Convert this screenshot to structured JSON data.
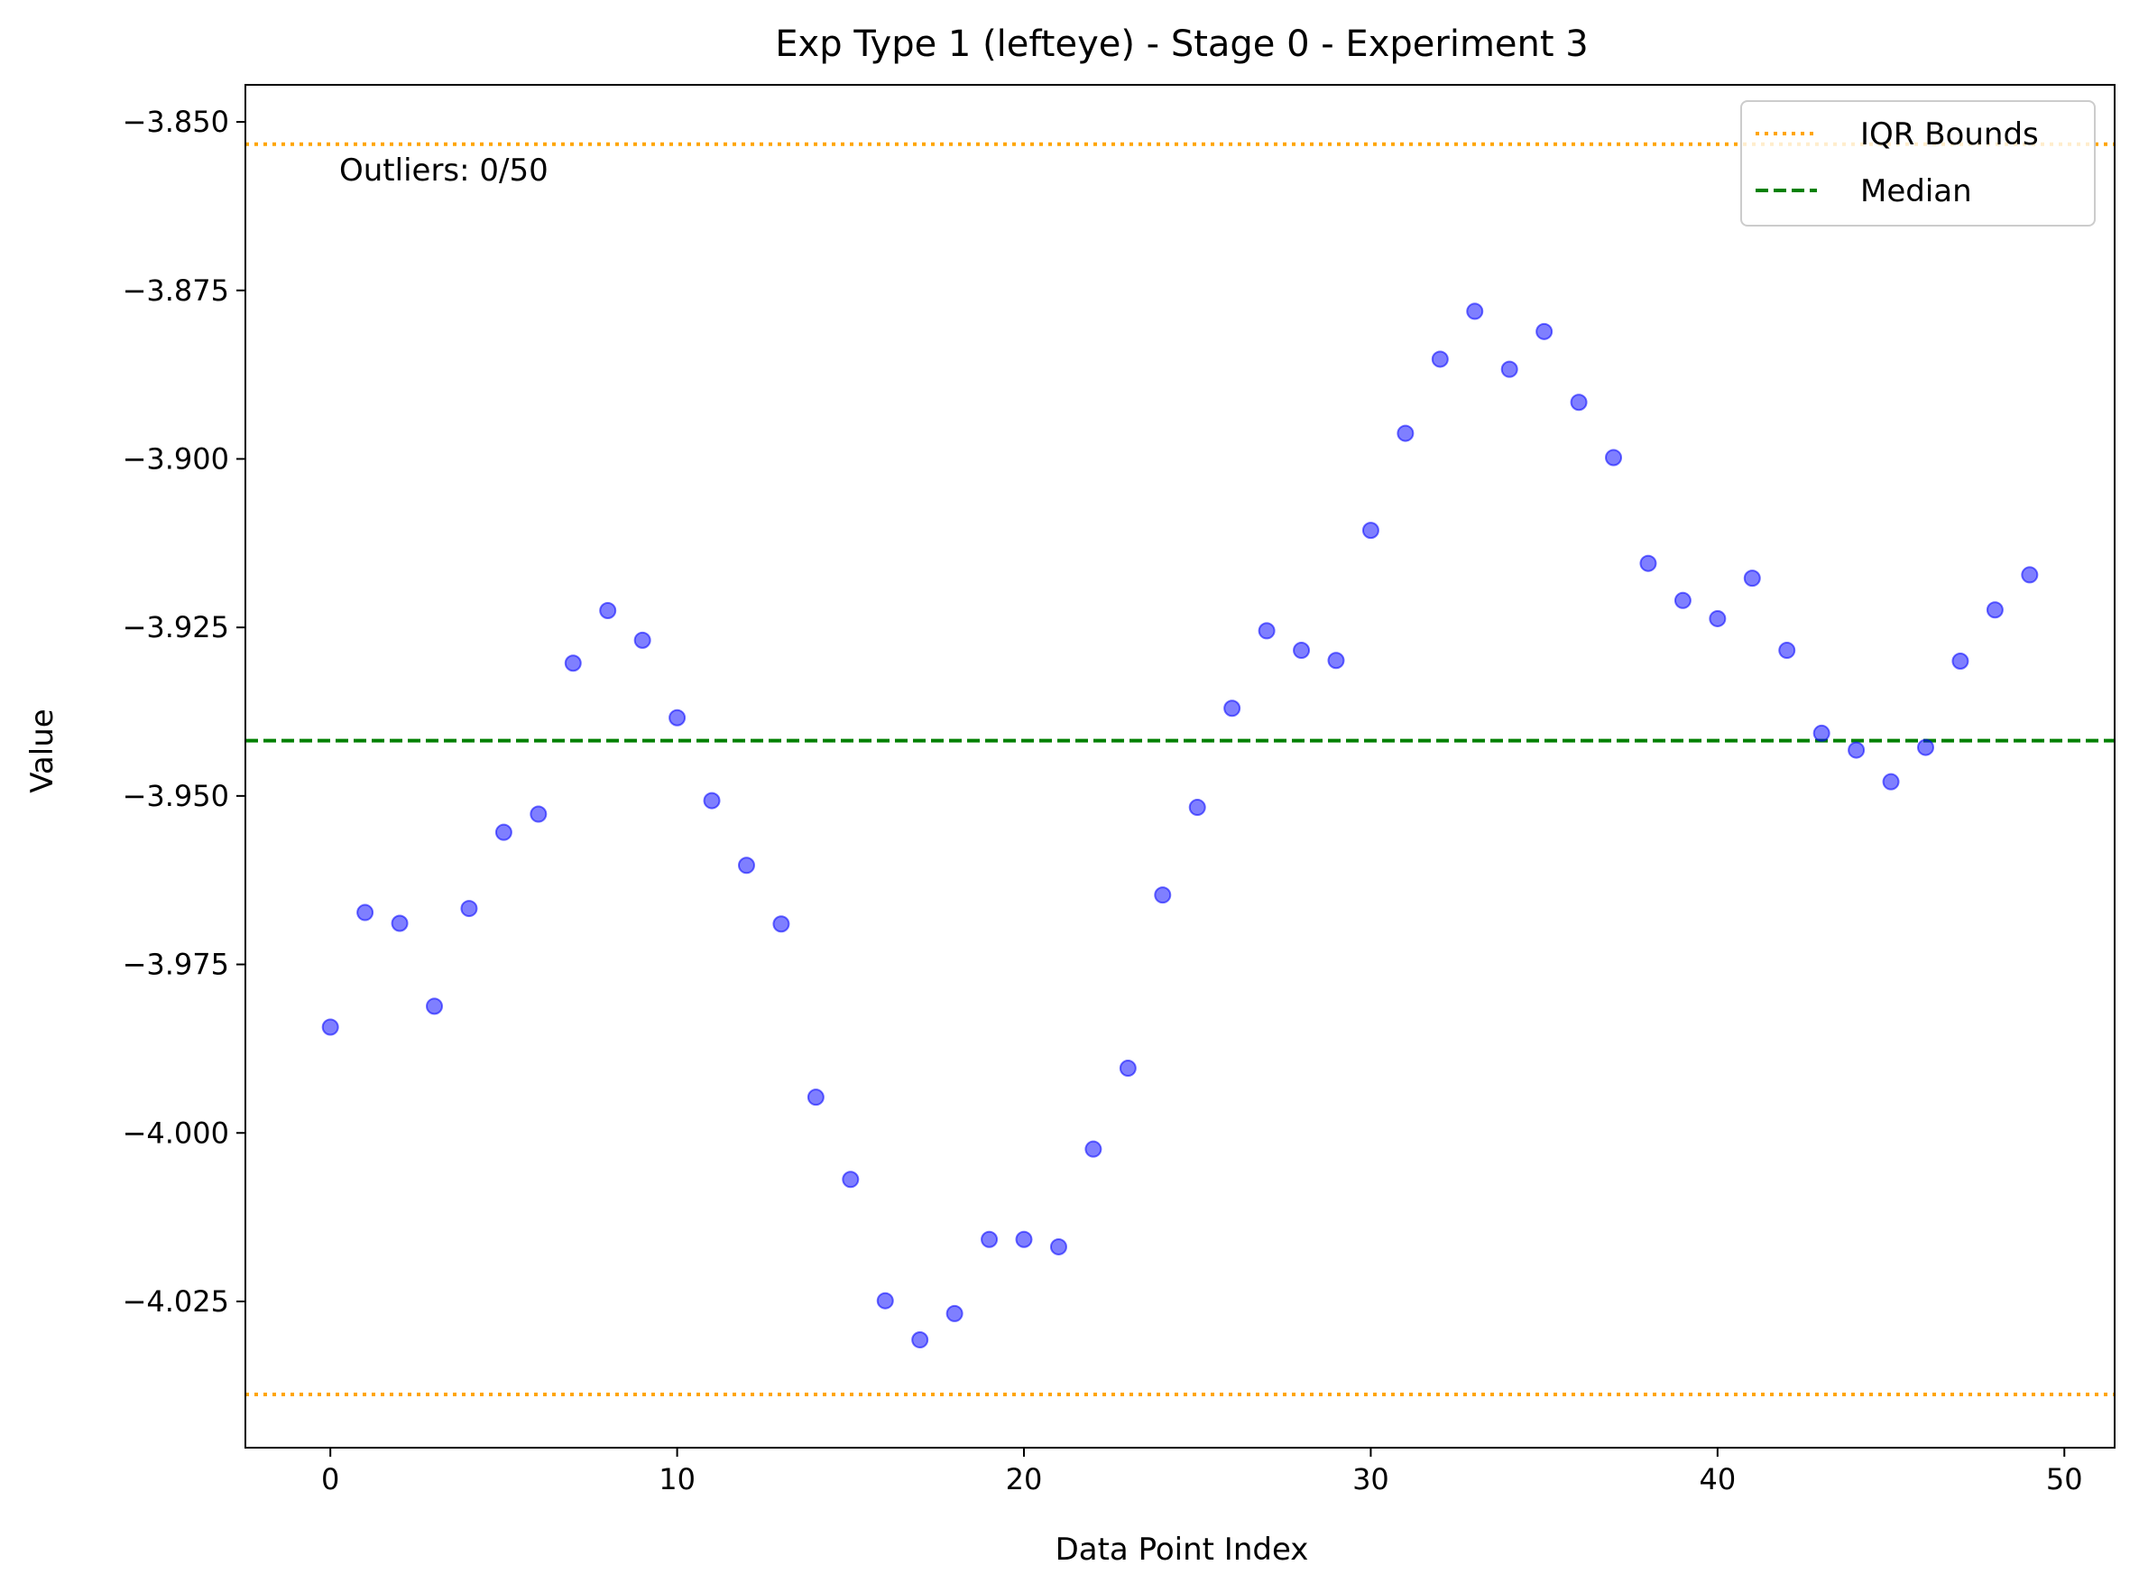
{
  "chart_data": {
    "type": "scatter",
    "title": "Exp Type 1 (lefteye) - Stage 0 - Experiment 3",
    "xlabel": "Data Point Index",
    "ylabel": "Value",
    "xlim": [
      -2.45,
      51.45
    ],
    "ylim": [
      -4.0467,
      -3.8445
    ],
    "xticks": [
      0,
      10,
      20,
      30,
      40,
      50
    ],
    "xtick_labels": [
      "0",
      "10",
      "20",
      "30",
      "40",
      "50"
    ],
    "yticks": [
      -3.85,
      -3.875,
      -3.9,
      -3.925,
      -3.95,
      -3.975,
      -4.0,
      -4.025
    ],
    "ytick_labels": [
      "−3.850",
      "−3.875",
      "−3.900",
      "−3.925",
      "−3.950",
      "−3.975",
      "−4.000",
      "−4.025"
    ],
    "grid": false,
    "legend_position": "top-right",
    "legend": [
      {
        "label": "IQR Bounds",
        "style": "dotted",
        "color": "#ffa500"
      },
      {
        "label": "Median",
        "style": "dashed",
        "color": "#008000"
      }
    ],
    "annotation": "Outliers: 0/50",
    "iqr_bounds": [
      -3.8533,
      -4.0388
    ],
    "median": -3.9418,
    "point_color": "#0000ff",
    "series": [
      {
        "x": [
          0,
          1,
          2,
          3,
          4,
          5,
          6,
          7,
          8,
          9,
          10,
          11,
          12,
          13,
          14,
          15,
          16,
          17,
          18,
          19,
          20,
          21,
          22,
          23,
          24,
          25,
          26,
          27,
          28,
          29,
          30,
          31,
          32,
          33,
          34,
          35,
          36,
          37,
          38,
          39,
          40,
          41,
          42,
          43,
          44,
          45,
          46,
          47,
          48,
          49
        ],
        "y": [
          -3.9843,
          -3.9673,
          -3.9689,
          -3.9812,
          -3.9667,
          -3.9554,
          -3.9527,
          -3.9303,
          -3.9225,
          -3.9269,
          -3.9384,
          -3.9507,
          -3.9603,
          -3.969,
          -3.9947,
          -4.0069,
          -4.0249,
          -4.0307,
          -4.0268,
          -4.0158,
          -4.0158,
          -4.0169,
          -4.0024,
          -3.9904,
          -3.9647,
          -3.9517,
          -3.937,
          -3.9255,
          -3.9284,
          -3.9299,
          -3.9106,
          -3.8962,
          -3.8852,
          -3.8781,
          -3.8867,
          -3.8811,
          -3.8916,
          -3.8998,
          -3.9155,
          -3.921,
          -3.9237,
          -3.9177,
          -3.9284,
          -3.9407,
          -3.9432,
          -3.9479,
          -3.9428,
          -3.93,
          -3.9224,
          -3.9172
        ]
      }
    ]
  }
}
